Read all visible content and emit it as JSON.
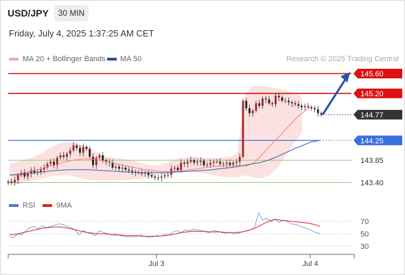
{
  "header": {
    "symbol": "USD/JPY",
    "timeframe": "30 MIN",
    "datetime": "Friday, July 4, 2025 1:37:25 AM CET"
  },
  "source": "Research © 2025 Trading Central",
  "legend": {
    "bollinger": "MA 20 + Bollinger Bands",
    "ma50": "MA 50",
    "rsi": "RSI",
    "rsi_ma": "9MA"
  },
  "colors": {
    "bollinger_band": "#fbdcdc",
    "ma20_line": "#f08080",
    "ma50_line": "#3a5fa8",
    "resistance": "#dd1111",
    "pivot": "#3a6fe0",
    "support": "#8fc97a",
    "current_price_label": "#333333",
    "rsi_line": "#5577cc",
    "rsi_ma_line": "#dd2222",
    "candle_up": "#aa2222",
    "candle_down": "#222222",
    "arrow": "#2255aa"
  },
  "chart_data": [
    {
      "type": "candlestick",
      "instrument": "USD/JPY",
      "interval": "30 MIN",
      "x_ticks": [
        "Jul 3",
        "Jul 4"
      ],
      "ylim": [
        143.3,
        145.7
      ],
      "levels": [
        {
          "value": 145.6,
          "label": "145.60",
          "kind": "resistance",
          "style": "label-box"
        },
        {
          "value": 145.2,
          "label": "145.20",
          "kind": "resistance",
          "style": "label-box"
        },
        {
          "value": 144.77,
          "label": "144.77",
          "kind": "current",
          "style": "label-box"
        },
        {
          "value": 144.25,
          "label": "144.25",
          "kind": "pivot",
          "style": "label-box"
        },
        {
          "value": 143.85,
          "label": "143.85",
          "kind": "support",
          "style": "plain"
        },
        {
          "value": 143.4,
          "label": "143.40",
          "kind": "support",
          "style": "plain"
        }
      ],
      "price_closes": [
        143.42,
        143.4,
        143.45,
        143.55,
        143.6,
        143.52,
        143.58,
        143.65,
        143.6,
        143.62,
        143.66,
        143.7,
        143.78,
        143.82,
        143.75,
        143.9,
        143.95,
        143.92,
        143.98,
        144.05,
        144.15,
        144.1,
        144.0,
        144.12,
        144.08,
        143.92,
        143.75,
        143.9,
        143.95,
        143.85,
        143.82,
        143.8,
        143.7,
        143.72,
        143.68,
        143.7,
        143.66,
        143.64,
        143.62,
        143.6,
        143.6,
        143.58,
        143.6,
        143.55,
        143.52,
        143.5,
        143.5,
        143.52,
        143.55,
        143.56,
        143.68,
        143.7,
        143.65,
        143.8,
        143.78,
        143.82,
        143.85,
        143.8,
        143.82,
        143.84,
        143.75,
        143.76,
        143.8,
        143.82,
        143.82,
        143.78,
        143.78,
        143.8,
        143.76,
        143.8,
        143.82,
        143.92,
        145.05,
        144.9,
        144.8,
        144.85,
        145.0,
        144.95,
        145.1,
        145.08,
        145.0,
        144.98,
        145.15,
        145.12,
        145.05,
        145.05,
        145.02,
        145.0,
        144.98,
        144.95,
        144.92,
        144.94,
        144.92,
        144.9,
        144.88,
        144.8,
        144.77
      ],
      "ma20": [
        143.55,
        143.57,
        143.6,
        143.63,
        143.66,
        143.7,
        143.74,
        143.78,
        143.82,
        143.85,
        143.87,
        143.88,
        143.87,
        143.85,
        143.82,
        143.79,
        143.76,
        143.73,
        143.7,
        143.67,
        143.65,
        143.63,
        143.62,
        143.62,
        143.63,
        143.64,
        143.66,
        143.68,
        143.7,
        143.72,
        143.73,
        143.74,
        143.74,
        143.74,
        143.74,
        143.8,
        143.95,
        144.1,
        144.25,
        144.4,
        144.55,
        144.7,
        144.82,
        144.92
      ],
      "bollinger_upper": [
        143.78,
        143.82,
        143.87,
        143.92,
        144.0,
        144.1,
        144.18,
        144.22,
        144.2,
        144.15,
        144.08,
        143.98,
        143.92,
        143.9,
        143.88,
        143.85,
        143.8,
        143.76,
        143.74,
        143.78,
        143.84,
        143.9,
        143.92,
        143.92,
        143.9,
        143.9,
        143.9,
        143.92,
        143.98,
        145.2,
        145.35,
        145.35,
        145.32,
        145.3,
        145.26,
        145.22,
        145.1
      ],
      "bollinger_lower": [
        143.38,
        143.36,
        143.4,
        143.44,
        143.48,
        143.52,
        143.54,
        143.55,
        143.52,
        143.48,
        143.45,
        143.44,
        143.44,
        143.44,
        143.45,
        143.46,
        143.48,
        143.5,
        143.55,
        143.58,
        143.6,
        143.62,
        143.62,
        143.6,
        143.58,
        143.55,
        143.52,
        143.5,
        143.5,
        143.55,
        143.5,
        143.48,
        143.55,
        143.7,
        143.95,
        144.2,
        144.4
      ],
      "ma50": [
        143.55,
        143.56,
        143.58,
        143.6,
        143.62,
        143.64,
        143.65,
        143.66,
        143.66,
        143.66,
        143.65,
        143.64,
        143.63,
        143.62,
        143.61,
        143.6,
        143.6,
        143.6,
        143.6,
        143.61,
        143.62,
        143.63,
        143.64,
        143.65,
        143.67,
        143.69,
        143.71,
        143.74,
        143.77,
        143.8,
        143.85,
        143.92,
        144.0,
        144.08,
        144.15,
        144.22,
        144.25
      ],
      "forecast_arrow": {
        "from": 144.77,
        "to": 145.6
      }
    },
    {
      "type": "line",
      "title": "RSI",
      "series": [
        {
          "name": "RSI",
          "values": [
            45,
            44,
            50,
            48,
            55,
            60,
            62,
            58,
            63,
            60,
            62,
            64,
            66,
            65,
            62,
            60,
            56,
            48,
            55,
            52,
            50,
            47,
            55,
            52,
            50,
            48,
            50,
            47,
            46,
            45,
            46,
            45,
            48,
            46,
            44,
            45,
            47,
            46,
            49,
            48,
            53,
            55,
            52,
            56,
            55,
            57,
            56,
            55,
            53,
            52,
            55,
            54,
            52,
            51,
            52,
            50,
            51,
            53,
            55,
            56,
            60,
            84,
            72,
            75,
            70,
            74,
            68,
            72,
            70,
            66,
            65,
            63,
            60,
            58,
            55,
            52,
            50
          ]
        },
        {
          "name": "9MA",
          "values": [
            48,
            49,
            51,
            53,
            55,
            57,
            59,
            60,
            61,
            61,
            60,
            58,
            56,
            54,
            52,
            51,
            50,
            50,
            49,
            48,
            48,
            47,
            47,
            47,
            46,
            46,
            46,
            46,
            47,
            48,
            50,
            52,
            53,
            54,
            54,
            54,
            53,
            53,
            53,
            52,
            52,
            52,
            53,
            55,
            58,
            62,
            67,
            71,
            73,
            72,
            71,
            70,
            69,
            68,
            67,
            65,
            62
          ]
        }
      ],
      "y_ticks": [
        "70",
        "50",
        "30"
      ],
      "ylim": [
        20,
        90
      ]
    }
  ]
}
